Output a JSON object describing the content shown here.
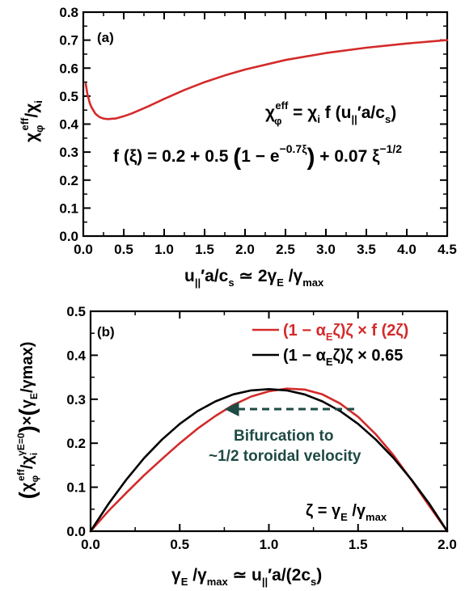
{
  "chart_data": [
    {
      "type": "line",
      "panel_label": "(a)",
      "ylabel": "χ_φ^eff / χ_i",
      "xlabel": "u'_|| a/c_s ≃ 2γ_E /γ_max",
      "xlim": [
        0.0,
        4.5
      ],
      "ylim": [
        0.0,
        0.8
      ],
      "x_ticks": [
        "0.0",
        "0.5",
        "1.0",
        "1.5",
        "2.0",
        "2.5",
        "3.0",
        "3.5",
        "4.0",
        "4.5"
      ],
      "y_ticks": [
        "0.0",
        "0.1",
        "0.2",
        "0.3",
        "0.4",
        "0.5",
        "0.6",
        "0.7",
        "0.8"
      ],
      "annotations": {
        "eq1": "χ_φ^eff = χ_i f (u'_|| a/c_s)",
        "eq2": "f (ξ) = 0.2 + 0.5 (1 − e^(−0.7ξ)) + 0.07 ξ^(−1/2)"
      },
      "series": [
        {
          "color": "#d42a2a",
          "x": [
            0.03,
            0.05,
            0.08,
            0.1,
            0.15,
            0.2,
            0.25,
            0.3,
            0.4,
            0.5,
            0.6,
            0.8,
            1.0,
            1.25,
            1.5,
            1.75,
            2.0,
            2.5,
            3.0,
            3.5,
            4.0,
            4.5
          ],
          "y": [
            0.544,
            0.508,
            0.475,
            0.461,
            0.437,
            0.425,
            0.42,
            0.418,
            0.42,
            0.428,
            0.438,
            0.463,
            0.49,
            0.522,
            0.55,
            0.574,
            0.595,
            0.629,
            0.654,
            0.673,
            0.688,
            0.7
          ]
        }
      ]
    },
    {
      "type": "line",
      "panel_label": "(b)",
      "ylabel": "(χ_φ^eff / χ_i^γE=0) × (γ_E / γmax)",
      "xlabel": "γ_E /γ_max ≃ u'_|| a/(2c_s)",
      "xlim": [
        0.0,
        2.0
      ],
      "ylim": [
        0.0,
        0.5
      ],
      "x_ticks": [
        "0.0",
        "0.5",
        "1.0",
        "1.5",
        "2.0"
      ],
      "y_ticks": [
        "0.0",
        "0.1",
        "0.2",
        "0.3",
        "0.4",
        "0.5"
      ],
      "legend_position": "top-right",
      "annotations": {
        "bifurcation_line1": "Bifurcation to",
        "bifurcation_line2": "~1/2 toroidal velocity",
        "zeta_def": "ζ = γ_E /γ_max"
      },
      "series": [
        {
          "name": "(1 − α_E ζ)ζ × f (2ζ)",
          "color": "#d42a2a",
          "x": [
            0.0,
            0.1,
            0.2,
            0.3,
            0.4,
            0.5,
            0.6,
            0.7,
            0.8,
            0.9,
            1.0,
            1.1,
            1.2,
            1.3,
            1.4,
            1.5,
            1.6,
            1.7,
            1.8,
            1.9,
            2.0
          ],
          "y": [
            0.0,
            0.046,
            0.087,
            0.127,
            0.164,
            0.2,
            0.233,
            0.262,
            0.287,
            0.306,
            0.318,
            0.324,
            0.322,
            0.311,
            0.29,
            0.26,
            0.22,
            0.172,
            0.116,
            0.057,
            0.0
          ]
        },
        {
          "name": "(1 − α_E ζ)ζ × 0.65",
          "color": "#000000",
          "x": [
            0.0,
            0.1,
            0.2,
            0.3,
            0.4,
            0.5,
            0.6,
            0.7,
            0.8,
            0.9,
            1.0,
            1.1,
            1.2,
            1.3,
            1.4,
            1.5,
            1.6,
            1.7,
            1.8,
            1.9,
            2.0
          ],
          "y": [
            0.0,
            0.062,
            0.117,
            0.166,
            0.208,
            0.244,
            0.273,
            0.295,
            0.311,
            0.32,
            0.323,
            0.32,
            0.311,
            0.295,
            0.273,
            0.244,
            0.208,
            0.166,
            0.117,
            0.062,
            0.0
          ]
        }
      ]
    }
  ],
  "colors": {
    "red_curve": "#d42a2a",
    "black_curve": "#000000",
    "bifurcation_arrow": "#1f4a44"
  }
}
